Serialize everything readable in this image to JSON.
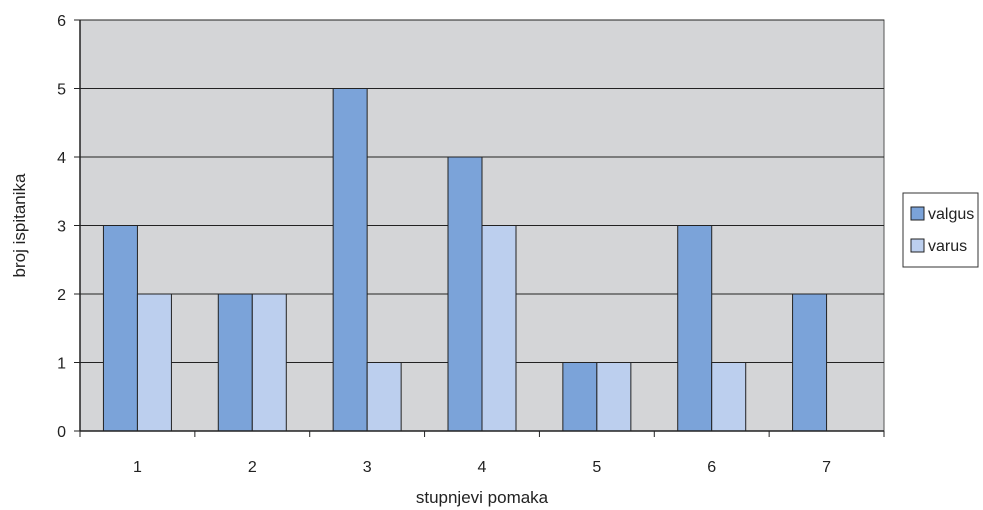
{
  "chart_data": {
    "type": "bar",
    "categories": [
      "1",
      "2",
      "3",
      "4",
      "5",
      "6",
      "7"
    ],
    "series": [
      {
        "name": "valgus",
        "values": [
          3,
          2,
          5,
          4,
          1,
          3,
          2
        ],
        "color": "#7ba3d9"
      },
      {
        "name": "varus",
        "values": [
          2,
          2,
          1,
          3,
          1,
          1,
          0
        ],
        "color": "#bccfee"
      }
    ],
    "xlabel": "stupnjevi pomaka",
    "ylabel": "broj ispitanika",
    "ylim": [
      0,
      6
    ],
    "yticks": [
      "0",
      "1",
      "2",
      "3",
      "4",
      "5",
      "6"
    ],
    "grid": true,
    "legend_position": "right",
    "plot_background": "#d4d5d7"
  }
}
